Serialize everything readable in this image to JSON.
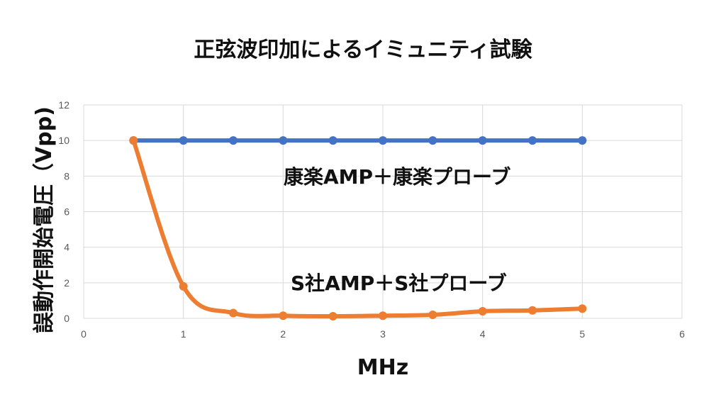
{
  "chart_data": {
    "type": "scatter",
    "title": "正弦波印加によるイミュニティ試験",
    "xlabel": "MHz",
    "ylabel": "誤動作開始電圧（Vpp)",
    "xlim": [
      0,
      6
    ],
    "ylim": [
      0,
      12
    ],
    "x_ticks": [
      0,
      1,
      2,
      3,
      4,
      5,
      6
    ],
    "y_ticks": [
      0,
      2,
      4,
      6,
      8,
      10,
      12
    ],
    "grid": true,
    "series": [
      {
        "name": "康楽AMP＋康楽プローブ",
        "color": "#4472c4",
        "smooth": false,
        "x": [
          0.5,
          1,
          1.5,
          2,
          2.5,
          3,
          3.5,
          4,
          4.5,
          5
        ],
        "y": [
          10,
          10,
          10,
          10,
          10,
          10,
          10,
          10,
          10,
          10
        ]
      },
      {
        "name": "S社AMP＋S社プローブ",
        "color": "#ed7d31",
        "smooth": true,
        "x": [
          0.5,
          1,
          1.5,
          2,
          2.5,
          3,
          3.5,
          4,
          4.5,
          5
        ],
        "y": [
          10,
          1.8,
          0.3,
          0.15,
          0.12,
          0.15,
          0.2,
          0.4,
          0.45,
          0.55
        ]
      }
    ]
  }
}
